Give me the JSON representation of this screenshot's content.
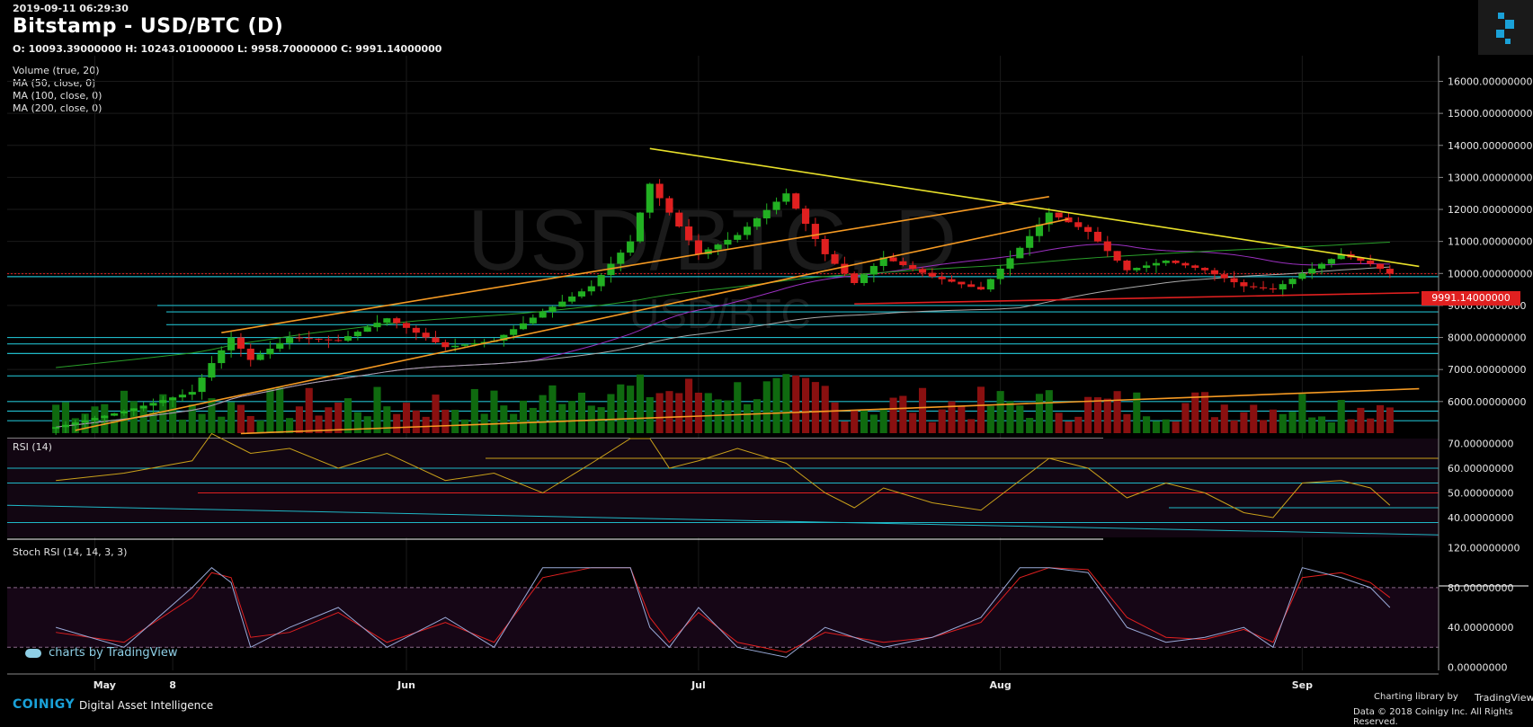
{
  "header": {
    "timestamp": "2019-09-11 06:29:30",
    "title": "Bitstamp - USD/BTC (D)",
    "ohlc": "O: 10093.39000000 H: 10243.01000000 L: 9958.70000000 C: 9991.14000000"
  },
  "indicators": [
    "Volume (true, 20)",
    "MA (50, close, 0)",
    "MA (100, close, 0)",
    "MA (200, close, 0)"
  ],
  "watermark": {
    "main": "USD/BTC, D",
    "sub": "USD/BTC"
  },
  "current_price_label": "9991.14000000",
  "rsi_label": "RSI (14)",
  "stoch_label": "Stoch RSI (14, 14, 3, 3)",
  "tv_overlay": "charts by TradingView",
  "footer": {
    "brand": "COINIGY",
    "tagline": "Digital Asset Intelligence",
    "charting": "Charting library by",
    "tv": "TradingView",
    "copyright": "Data © 2018    Coinigy Inc. All Rights Reserved."
  },
  "colors": {
    "up": "#22b022",
    "down": "#e02020",
    "resistance": "#e8e02a",
    "trend": "#f59a23",
    "support_red": "#e02020",
    "hlines": "#1fb8c7",
    "ma50": "#9b30c0",
    "ma100": "#aaaaaa",
    "ma200": "#2aa02a"
  },
  "chart_data": [
    {
      "type": "candlestick",
      "title": "Bitstamp - USD/BTC (D)",
      "x_ticks": [
        "May",
        "8",
        "Jun",
        "Jul",
        "Aug",
        "Sep"
      ],
      "y_ticks": [
        "16000.00000000",
        "15000.00000000",
        "14000.00000000",
        "13000.00000000",
        "12000.00000000",
        "11000.00000000",
        "10000.00000000",
        "9000.00000000",
        "8000.00000000",
        "7000.00000000",
        "6000.00000000"
      ],
      "ylim": [
        4900,
        16800
      ],
      "dates": [
        "2019-04-26",
        "2019-05-03",
        "2019-05-10",
        "2019-05-12",
        "2019-05-14",
        "2019-05-16",
        "2019-05-20",
        "2019-05-25",
        "2019-05-30",
        "2019-06-05",
        "2019-06-10",
        "2019-06-15",
        "2019-06-20",
        "2019-06-24",
        "2019-06-26",
        "2019-06-28",
        "2019-07-01",
        "2019-07-05",
        "2019-07-10",
        "2019-07-14",
        "2019-07-17",
        "2019-07-20",
        "2019-07-25",
        "2019-07-30",
        "2019-08-03",
        "2019-08-06",
        "2019-08-10",
        "2019-08-14",
        "2019-08-18",
        "2019-08-22",
        "2019-08-26",
        "2019-08-29",
        "2019-09-01",
        "2019-09-05",
        "2019-09-08",
        "2019-09-10"
      ],
      "close": [
        5200,
        5700,
        6300,
        7200,
        8000,
        7300,
        8000,
        7900,
        8600,
        7700,
        7900,
        8800,
        9600,
        11000,
        12800,
        11900,
        10600,
        11200,
        12500,
        10600,
        9700,
        10500,
        9900,
        9500,
        10800,
        11900,
        11300,
        10100,
        10400,
        10100,
        9600,
        9500,
        10000,
        10600,
        10300,
        9991
      ],
      "annotations": {
        "resistance_line": {
          "from": [
            "2019-06-26",
            13900
          ],
          "to": [
            "2019-09-13",
            10220
          ]
        },
        "rising_trend_upper": {
          "from": [
            "2019-05-13",
            8150
          ],
          "to": [
            "2019-08-06",
            12400
          ]
        },
        "rising_trend_lower": {
          "from": [
            "2019-04-28",
            5100
          ],
          "to": [
            "2019-08-08",
            11700
          ]
        },
        "rising_support_long": {
          "from": [
            "2019-05-15",
            5000
          ],
          "to": [
            "2019-09-13",
            6400
          ]
        },
        "support_red": {
          "from": [
            "2019-07-17",
            9050
          ],
          "to": [
            "2019-09-13",
            9400
          ]
        },
        "horizontal_levels": [
          9000,
          8800,
          8400,
          8000,
          7800,
          7500,
          6800,
          6000,
          5700,
          5400,
          9900
        ]
      }
    },
    {
      "type": "line",
      "title": "RSI (14)",
      "y_ticks": [
        "70.00000000",
        "60.00000000",
        "50.00000000",
        "40.00000000"
      ],
      "ylim": [
        32,
        72
      ],
      "values": [
        55,
        58,
        63,
        74,
        70,
        66,
        68,
        60,
        66,
        55,
        58,
        50,
        62,
        72,
        72,
        60,
        63,
        68,
        62,
        50,
        44,
        52,
        46,
        43,
        55,
        64,
        60,
        48,
        54,
        50,
        42,
        40,
        54,
        55,
        52,
        45
      ]
    },
    {
      "type": "line",
      "title": "Stoch RSI (14, 14, 3, 3)",
      "y_ticks": [
        "120.00000000",
        "80.00000000",
        "40.00000000",
        "0.00000000"
      ],
      "ylim": [
        -5,
        125
      ],
      "k": [
        40,
        20,
        80,
        100,
        85,
        20,
        40,
        60,
        20,
        50,
        20,
        100,
        100,
        100,
        40,
        20,
        60,
        20,
        10,
        40,
        30,
        20,
        30,
        50,
        100,
        100,
        95,
        40,
        25,
        30,
        40,
        20,
        100,
        90,
        80,
        60
      ],
      "d": [
        35,
        25,
        70,
        95,
        90,
        30,
        35,
        55,
        25,
        45,
        25,
        90,
        100,
        100,
        50,
        25,
        55,
        25,
        15,
        35,
        30,
        25,
        30,
        45,
        90,
        100,
        98,
        50,
        30,
        28,
        38,
        25,
        90,
        95,
        85,
        70
      ]
    }
  ]
}
